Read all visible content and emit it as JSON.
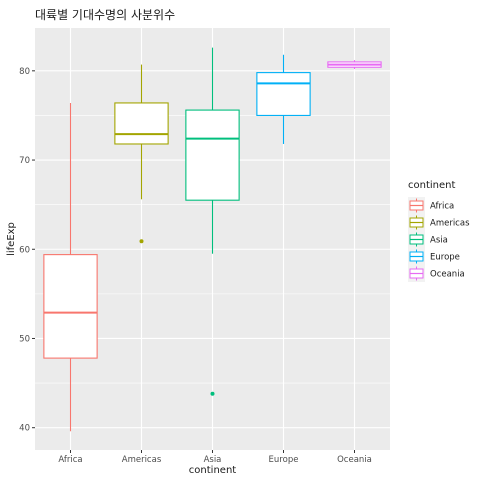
{
  "chart_data": {
    "type": "boxplot",
    "title": "대륙별 기대수명의 사분위수",
    "xlabel": "continent",
    "ylabel": "lifeExp",
    "ylim": [
      37.5,
      84.8
    ],
    "yticks": [
      40,
      50,
      60,
      70,
      80
    ],
    "grid": true,
    "legend_title": "continent",
    "legend_position": "right",
    "categories": [
      "Africa",
      "Americas",
      "Asia",
      "Europe",
      "Oceania"
    ],
    "series": [
      {
        "name": "Africa",
        "color": "#F8766D",
        "whisker_low": 39.6,
        "q1": 47.8,
        "median": 52.9,
        "q3": 59.4,
        "whisker_high": 76.4,
        "outliers": []
      },
      {
        "name": "Americas",
        "color": "#A3A500",
        "whisker_low": 65.6,
        "q1": 71.8,
        "median": 72.9,
        "q3": 76.4,
        "whisker_high": 80.7,
        "outliers": [
          60.9
        ]
      },
      {
        "name": "Asia",
        "color": "#00BF7D",
        "whisker_low": 59.5,
        "q1": 65.5,
        "median": 72.4,
        "q3": 75.6,
        "whisker_high": 82.6,
        "outliers": [
          43.8
        ]
      },
      {
        "name": "Europe",
        "color": "#00B0F6",
        "whisker_low": 71.8,
        "q1": 75.0,
        "median": 78.6,
        "q3": 79.8,
        "whisker_high": 81.8,
        "outliers": []
      },
      {
        "name": "Oceania",
        "color": "#E76BF3",
        "whisker_low": 80.2,
        "q1": 80.4,
        "median": 80.7,
        "q3": 81.0,
        "whisker_high": 81.2,
        "outliers": []
      }
    ]
  }
}
